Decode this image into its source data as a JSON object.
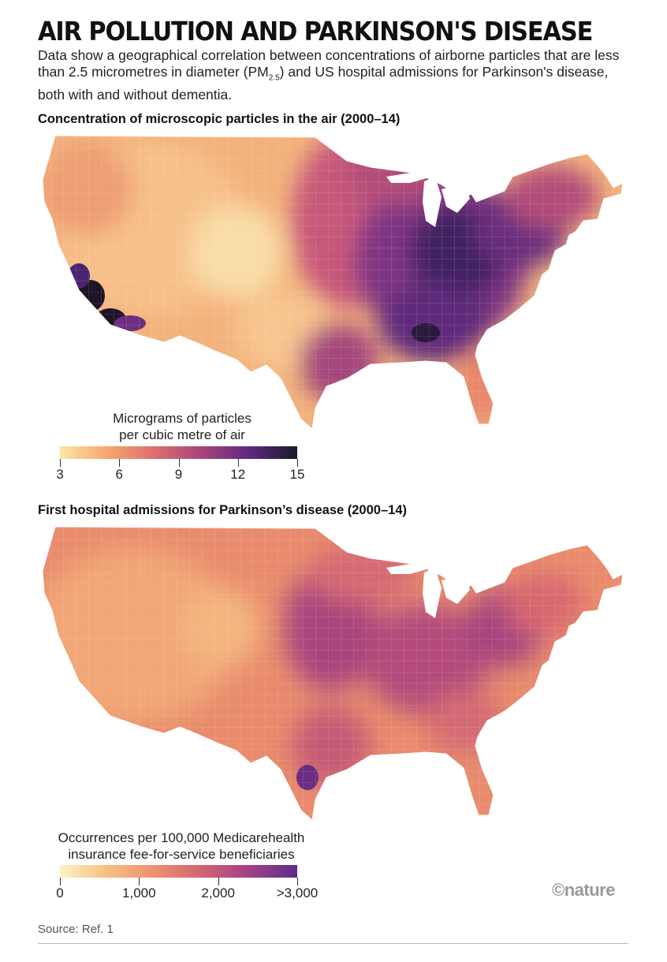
{
  "title": "AIR POLLUTION AND PARKINSON'S DISEASE",
  "subtitle_part1": "Data show a geographical correlation between concentrations of airborne particles that are less than 2.5 micrometres in diameter (PM",
  "subtitle_sub": "2.5",
  "subtitle_part2": ") and US hospital admissions for Parkinson's disease, both with and without dementia.",
  "chart_data": [
    {
      "type": "choropleth",
      "title": "Concentration of microscopic particles in the air (2000–14)",
      "region": "Contiguous United States, by county",
      "legend_title_line1": "Micrograms of particles",
      "legend_title_line2": "per cubic metre of air",
      "legend_ticks": [
        "3",
        "6",
        "9",
        "12",
        "15"
      ],
      "legend_range": [
        3,
        15
      ],
      "colors": [
        "#fbe6a8",
        "#f5a66f",
        "#dd6e6d",
        "#a8447b",
        "#5d2a7e",
        "#1a1a28"
      ]
    },
    {
      "type": "choropleth",
      "title": "First hospital admissions for Parkinson’s disease (2000–14)",
      "region": "Contiguous United States, by county",
      "legend_title_line1": "Occurrences per 100,000 Medicarehealth",
      "legend_title_line2": "insurance fee-for-service beneficiaries",
      "legend_ticks": [
        "0",
        "1,000",
        "2,000",
        ">3,000"
      ],
      "legend_range": [
        0,
        3000
      ],
      "colors": [
        "#fdf3c4",
        "#f5bf81",
        "#ec9170",
        "#cf5d73",
        "#9a3f8a",
        "#5e2a8a"
      ]
    }
  ],
  "brand": "©nature",
  "source": "Source: Ref. 1"
}
